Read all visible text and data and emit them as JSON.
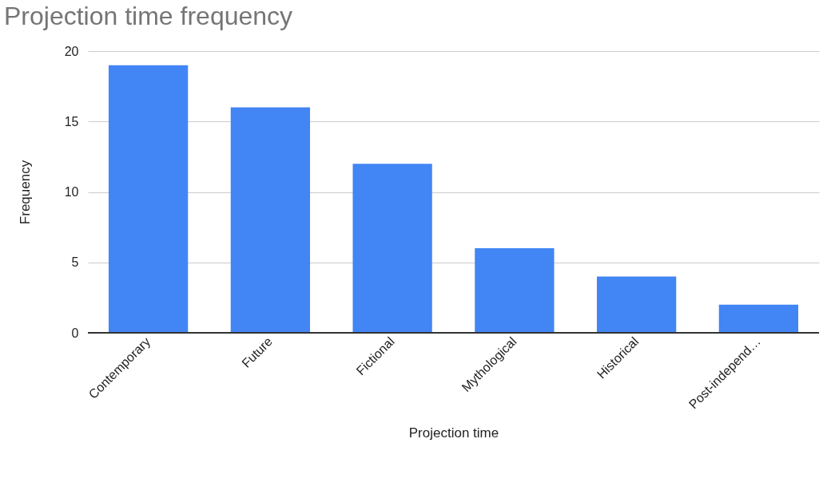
{
  "chart_data": {
    "type": "bar",
    "title": "Projection time frequency",
    "xlabel": "Projection time",
    "ylabel": "Frequency",
    "categories": [
      "Contemporary",
      "Future",
      "Fictional",
      "Mythological",
      "Historical",
      "Post-independ…"
    ],
    "values": [
      19,
      16,
      12,
      6,
      4,
      2
    ],
    "color": "#4285f4",
    "ylim": [
      0,
      20
    ],
    "yticks": [
      0,
      5,
      10,
      15,
      20
    ],
    "grid": "y"
  }
}
